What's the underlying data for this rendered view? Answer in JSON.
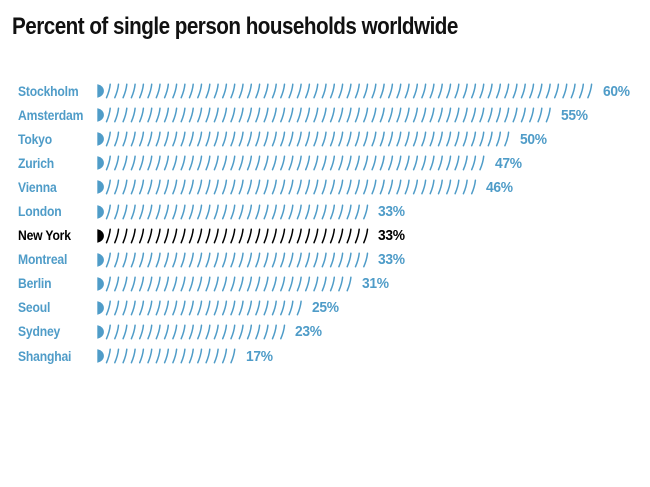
{
  "page": {
    "background": "#ffffff"
  },
  "chart_data": {
    "type": "bar",
    "orientation": "horizontal",
    "bar_style": "repeated-tick-glyphs",
    "title": "Percent of single person households worldwide",
    "unit": "%",
    "categories": [
      "Stockholm",
      "Amsterdam",
      "Tokyo",
      "Zurich",
      "Vienna",
      "London",
      "New York",
      "Montreal",
      "Berlin",
      "Seoul",
      "Sydney",
      "Shanghai"
    ],
    "values": [
      60,
      55,
      50,
      47,
      46,
      33,
      33,
      33,
      31,
      25,
      23,
      17
    ],
    "value_labels": [
      "60%",
      "55%",
      "50%",
      "47%",
      "46%",
      "33%",
      "33%",
      "33%",
      "31%",
      "25%",
      "23%",
      "17%"
    ],
    "highlighted_category": "New York",
    "xlim": [
      0,
      60
    ],
    "grid": false,
    "legend": "none",
    "colors": {
      "bar": "#4f9cc8",
      "highlight": "#000000",
      "title": "#111111"
    }
  }
}
